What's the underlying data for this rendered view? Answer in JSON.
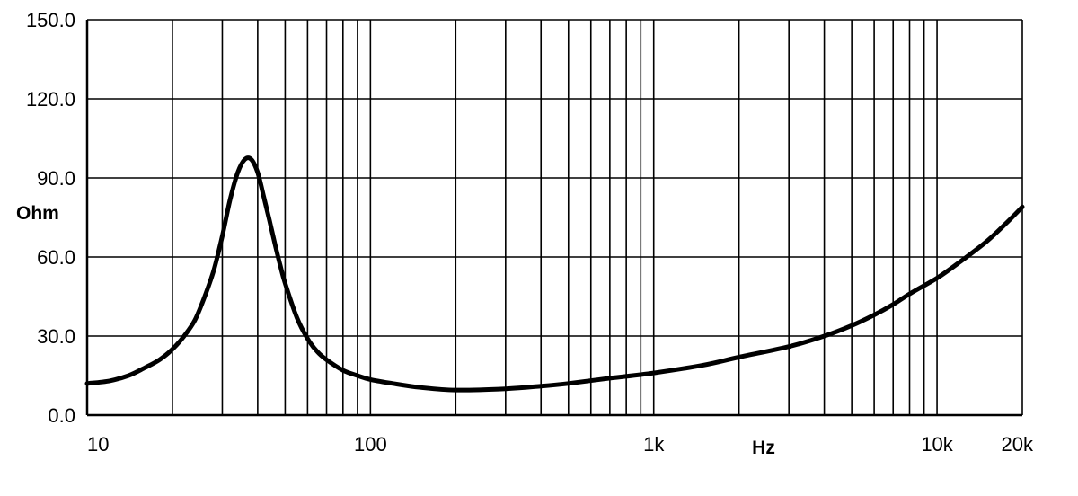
{
  "chart_data": {
    "type": "line",
    "title": "",
    "xlabel": "Hz",
    "ylabel": "Ohm",
    "xscale": "log",
    "xlim": [
      10,
      20000
    ],
    "ylim": [
      0,
      150
    ],
    "grid": true,
    "x_tick_labels": [
      {
        "value": 10,
        "label": "10"
      },
      {
        "value": 100,
        "label": "100"
      },
      {
        "value": 1000,
        "label": "1k"
      },
      {
        "value": 10000,
        "label": "10k"
      },
      {
        "value": 20000,
        "label": "20k"
      }
    ],
    "x_gridlines": [
      20,
      30,
      40,
      50,
      60,
      70,
      80,
      90,
      100,
      200,
      300,
      400,
      500,
      600,
      700,
      800,
      900,
      1000,
      2000,
      3000,
      4000,
      5000,
      6000,
      7000,
      8000,
      9000,
      10000,
      20000
    ],
    "y_ticks": [
      {
        "value": 0,
        "label": "0.0"
      },
      {
        "value": 30,
        "label": "30.0"
      },
      {
        "value": 60,
        "label": "60.0"
      },
      {
        "value": 90,
        "label": "90.0"
      },
      {
        "value": 120,
        "label": "120.0"
      },
      {
        "value": 150,
        "label": "150.0"
      }
    ],
    "series": [
      {
        "color": "#000000",
        "points": [
          [
            10,
            12
          ],
          [
            12,
            13
          ],
          [
            14,
            15
          ],
          [
            16,
            18
          ],
          [
            18,
            21
          ],
          [
            20,
            25
          ],
          [
            22,
            30
          ],
          [
            24,
            36
          ],
          [
            26,
            45
          ],
          [
            28,
            55
          ],
          [
            30,
            68
          ],
          [
            32,
            82
          ],
          [
            34,
            92
          ],
          [
            36,
            97
          ],
          [
            38,
            97
          ],
          [
            40,
            92
          ],
          [
            42,
            83
          ],
          [
            44,
            74
          ],
          [
            46,
            65
          ],
          [
            48,
            57
          ],
          [
            50,
            50
          ],
          [
            55,
            37
          ],
          [
            60,
            29
          ],
          [
            65,
            24
          ],
          [
            70,
            21
          ],
          [
            80,
            17
          ],
          [
            90,
            15
          ],
          [
            100,
            13.5
          ],
          [
            120,
            12
          ],
          [
            150,
            10.5
          ],
          [
            200,
            9.5
          ],
          [
            300,
            10
          ],
          [
            400,
            11
          ],
          [
            500,
            12
          ],
          [
            700,
            14
          ],
          [
            1000,
            16
          ],
          [
            1500,
            19
          ],
          [
            2000,
            22
          ],
          [
            3000,
            26
          ],
          [
            4000,
            30
          ],
          [
            5000,
            34
          ],
          [
            6000,
            38
          ],
          [
            7000,
            42
          ],
          [
            8000,
            46
          ],
          [
            10000,
            52
          ],
          [
            12000,
            58
          ],
          [
            15000,
            66
          ],
          [
            18000,
            74
          ],
          [
            20000,
            79
          ]
        ]
      }
    ]
  }
}
